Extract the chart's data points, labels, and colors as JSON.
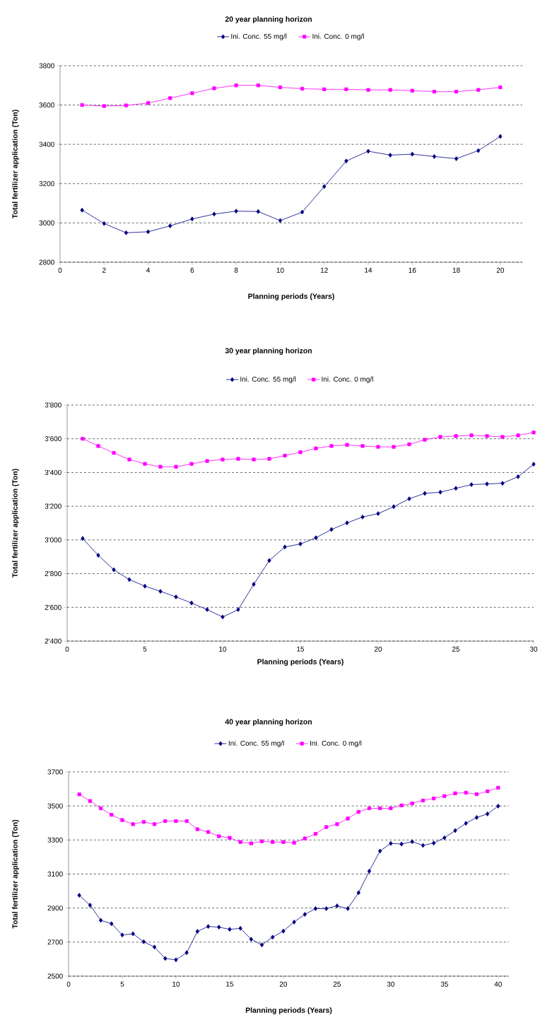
{
  "chart_data": [
    {
      "type": "line",
      "title": "20 year planning horizon",
      "xlabel": "Planning periods (Years)",
      "ylabel": "Total fertilizer application (Ton)",
      "x": [
        1,
        2,
        3,
        4,
        5,
        6,
        7,
        8,
        9,
        10,
        11,
        12,
        13,
        14,
        15,
        16,
        17,
        18,
        19,
        20
      ],
      "xlim": [
        0,
        21
      ],
      "xticks": [
        0,
        2,
        4,
        6,
        8,
        10,
        12,
        14,
        16,
        18,
        20
      ],
      "ylim": [
        2800,
        3800
      ],
      "yticks": [
        2800,
        3000,
        3200,
        3400,
        3600,
        3800
      ],
      "grid": "y",
      "legend": "top",
      "series": [
        {
          "name": "Ini. Conc. 55 mg/l",
          "color": "#000080",
          "marker": "diamond",
          "values": [
            3065,
            2997,
            2950,
            2955,
            2985,
            3020,
            3045,
            3060,
            3058,
            3012,
            3055,
            3185,
            3315,
            3365,
            3345,
            3350,
            3338,
            3327,
            3368,
            3440
          ]
        },
        {
          "name": "Ini. Conc. 0 mg/l",
          "color": "#ff00ff",
          "marker": "square",
          "values": [
            3600,
            3595,
            3598,
            3610,
            3635,
            3660,
            3685,
            3700,
            3700,
            3690,
            3683,
            3680,
            3680,
            3677,
            3677,
            3673,
            3668,
            3668,
            3677,
            3690
          ]
        }
      ]
    },
    {
      "type": "line",
      "title": "30 year planning horizon",
      "xlabel": "Planning periods (Years)",
      "ylabel": "Total fertilizer application (Ton)",
      "x": [
        1,
        2,
        3,
        4,
        5,
        6,
        7,
        8,
        9,
        10,
        11,
        12,
        13,
        14,
        15,
        16,
        17,
        18,
        19,
        20,
        21,
        22,
        23,
        24,
        25,
        26,
        27,
        28,
        29,
        30
      ],
      "xlim": [
        0,
        30
      ],
      "xticks": [
        0,
        5,
        10,
        15,
        20,
        25,
        30
      ],
      "ylim": [
        2400,
        3800
      ],
      "yticks": [
        {
          "value": 2400,
          "label": "2'400"
        },
        {
          "value": 2600,
          "label": "2'600"
        },
        {
          "value": 2800,
          "label": "2'800"
        },
        {
          "value": 3000,
          "label": "3'000"
        },
        {
          "value": 3200,
          "label": "3'200"
        },
        {
          "value": 3400,
          "label": "3'400"
        },
        {
          "value": 3600,
          "label": "3'600"
        },
        {
          "value": 3800,
          "label": "3'800"
        }
      ],
      "grid": "y",
      "legend": "top",
      "series": [
        {
          "name": "Ini. Conc. 55 mg/l",
          "color": "#000080",
          "marker": "diamond",
          "values": [
            3009,
            2909,
            2823,
            2765,
            2726,
            2695,
            2662,
            2626,
            2587,
            2543,
            2587,
            2737,
            2878,
            2958,
            2976,
            3013,
            3062,
            3101,
            3136,
            3156,
            3197,
            3244,
            3276,
            3283,
            3306,
            3328,
            3332,
            3336,
            3375,
            3449
          ]
        },
        {
          "name": "Ini. Conc. 0 mg/l",
          "color": "#ff00ff",
          "marker": "square",
          "values": [
            3600,
            3557,
            3516,
            3477,
            3451,
            3434,
            3434,
            3451,
            3468,
            3477,
            3481,
            3477,
            3481,
            3500,
            3520,
            3543,
            3557,
            3564,
            3557,
            3552,
            3552,
            3567,
            3594,
            3611,
            3616,
            3620,
            3616,
            3611,
            3620,
            3637
          ]
        }
      ]
    },
    {
      "type": "line",
      "title": "40 year planning horizon",
      "xlabel": "Planning periods (Years)",
      "ylabel": "Total fertilizer application (Ton)",
      "x": [
        1,
        2,
        3,
        4,
        5,
        6,
        7,
        8,
        9,
        10,
        11,
        12,
        13,
        14,
        15,
        16,
        17,
        18,
        19,
        20,
        21,
        22,
        23,
        24,
        25,
        26,
        27,
        28,
        29,
        30,
        31,
        32,
        33,
        34,
        35,
        36,
        37,
        38,
        39,
        40
      ],
      "xlim": [
        0,
        41
      ],
      "xticks": [
        0,
        5,
        10,
        15,
        20,
        25,
        30,
        35,
        40
      ],
      "ylim": [
        2500,
        3700
      ],
      "yticks": [
        2500,
        2700,
        2900,
        3100,
        3300,
        3500,
        3700
      ],
      "grid": "y",
      "legend": "top",
      "series": [
        {
          "name": "Ini. Conc. 55 mg/l",
          "color": "#000080",
          "marker": "diamond",
          "values": [
            2975,
            2917,
            2828,
            2808,
            2742,
            2749,
            2702,
            2671,
            2604,
            2596,
            2638,
            2763,
            2792,
            2788,
            2775,
            2781,
            2717,
            2684,
            2729,
            2765,
            2818,
            2863,
            2897,
            2897,
            2913,
            2897,
            2990,
            3117,
            3235,
            3280,
            3276,
            3290,
            3268,
            3282,
            3313,
            3355,
            3398,
            3432,
            3453,
            3499
          ]
        },
        {
          "name": "Ini. Conc. 0 mg/l",
          "color": "#ff00ff",
          "marker": "square",
          "values": [
            3568,
            3529,
            3486,
            3448,
            3417,
            3393,
            3406,
            3393,
            3411,
            3411,
            3411,
            3363,
            3347,
            3322,
            3313,
            3288,
            3280,
            3292,
            3288,
            3288,
            3284,
            3309,
            3336,
            3376,
            3393,
            3426,
            3465,
            3486,
            3486,
            3486,
            3503,
            3515,
            3532,
            3544,
            3558,
            3574,
            3578,
            3569,
            3586,
            3607
          ]
        }
      ]
    }
  ]
}
